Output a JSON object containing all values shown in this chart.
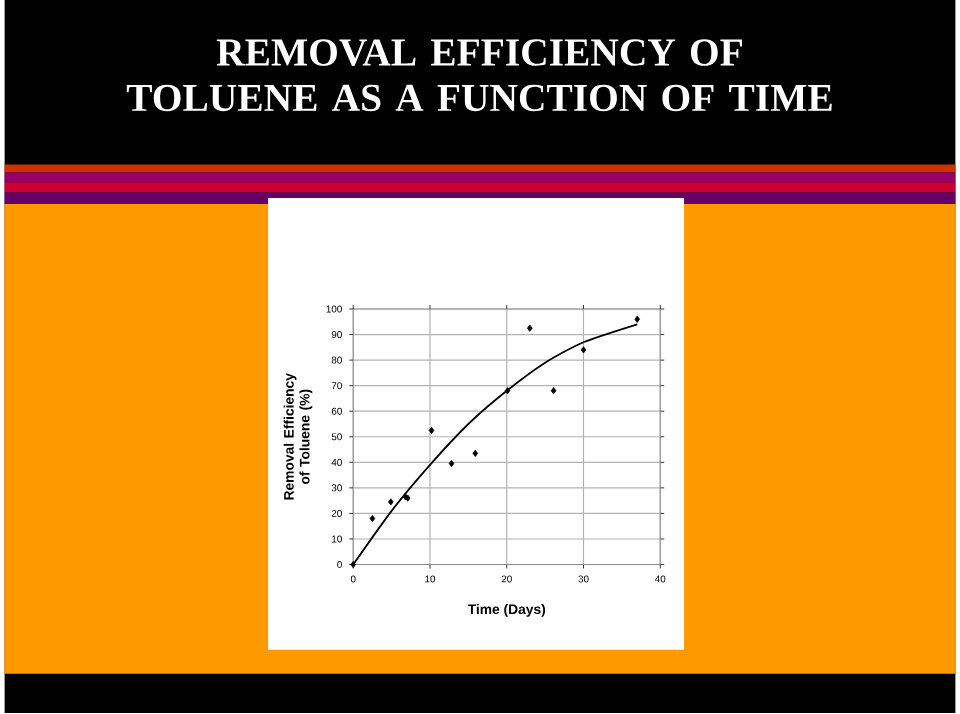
{
  "chart_data": {
    "type": "scatter",
    "title": "REMOVAL EFFICIENCY OF TOLUENE AS A FUNCTION OF TIME",
    "xlabel": "Time (Days)",
    "ylabel": "Removal Efficiency of Toluene (%)",
    "xlim": [
      0,
      40
    ],
    "xticks": [
      0,
      10,
      20,
      30,
      40
    ],
    "ylim": [
      0,
      100
    ],
    "yticks": [
      0,
      10,
      20,
      30,
      40,
      50,
      60,
      70,
      80,
      90,
      100
    ],
    "grid": true,
    "marker": "diamond",
    "series": [
      {
        "color": "#000000",
        "x": [
          0,
          2.5,
          4.9,
          6.8,
          7.1,
          10.2,
          12.8,
          15.9,
          20.1,
          23,
          26.1,
          30,
          37
        ],
        "values": [
          0,
          18,
          24.5,
          26.5,
          26,
          52.5,
          39.5,
          43.5,
          68,
          92.5,
          68,
          84,
          96
        ]
      },
      {
        "type": "line",
        "color": "#000000",
        "marker": "none",
        "x": [
          0,
          5,
          10,
          15,
          20,
          25,
          30,
          37
        ],
        "values": [
          0,
          21,
          39,
          55,
          68,
          79,
          87,
          94
        ]
      }
    ]
  }
}
